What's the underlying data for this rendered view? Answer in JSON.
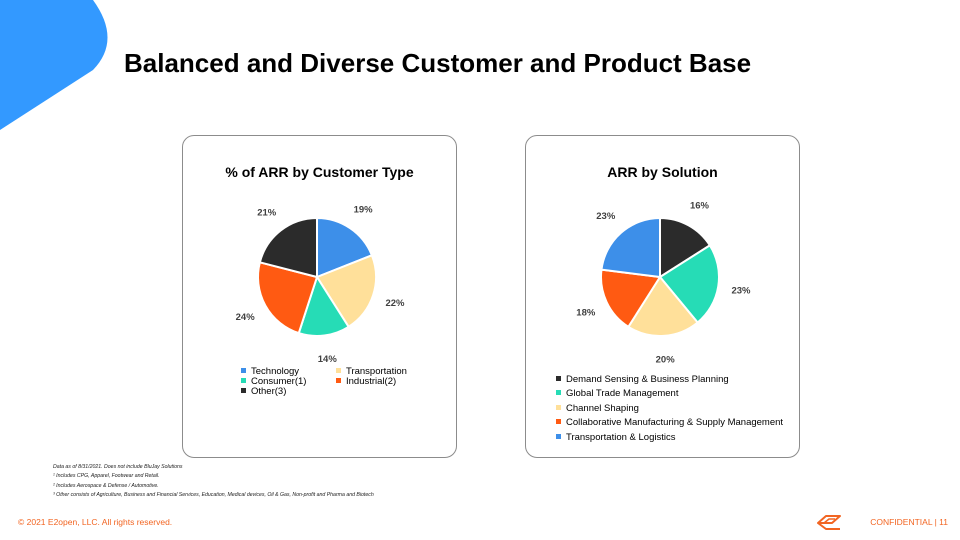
{
  "slide": {
    "title": "Balanced and Diverse Customer and Product Base",
    "accent_color": "#3399ff"
  },
  "chart_data": [
    {
      "type": "pie",
      "title": "% of ARR by Customer Type",
      "categories": [
        "Technology",
        "Transportation",
        "Consumer(1)",
        "Industrial(2)",
        "Other(3)"
      ],
      "values": [
        19,
        22,
        14,
        24,
        21
      ],
      "value_labels": [
        "19%",
        "22%",
        "14%",
        "24%",
        "21%"
      ],
      "colors": [
        "#3d8fe9",
        "#ffe09a",
        "#26dcb6",
        "#ff5a12",
        "#2b2b2b"
      ],
      "legend": {
        "placement": "bottom",
        "columns": 2
      }
    },
    {
      "type": "pie",
      "title": "ARR by Solution",
      "categories": [
        "Demand Sensing & Business Planning",
        "Global Trade Management",
        "Channel Shaping",
        "Collaborative Manufacturing & Supply Management",
        "Transportation & Logistics"
      ],
      "values": [
        16,
        23,
        20,
        18,
        23
      ],
      "value_labels": [
        "16%",
        "23%",
        "20%",
        "18%",
        "23%"
      ],
      "colors": [
        "#2b2b2b",
        "#26dcb6",
        "#ffe09a",
        "#ff5a12",
        "#3d8fe9"
      ],
      "legend": {
        "placement": "bottom",
        "columns": 1
      }
    }
  ],
  "footnotes": [
    "Data as of 8/31/2021.  Does not include BluJay Solutions",
    "¹ Includes CPG, Apparel, Footwear and Retail.",
    "² Includes Aerospace & Defense / Automotive.",
    "³ Other consists of Agriculture, Business and Financial Services, Education, Medical devices, Oil & Gas, Non-profit and Pharma and Biotech"
  ],
  "footer": {
    "copyright": "© 2021 E2open, LLC. All rights reserved.",
    "confidential": "CONFIDENTIAL   |   11",
    "color": "#f26522",
    "logo_icon": "e2open-logo-icon"
  }
}
